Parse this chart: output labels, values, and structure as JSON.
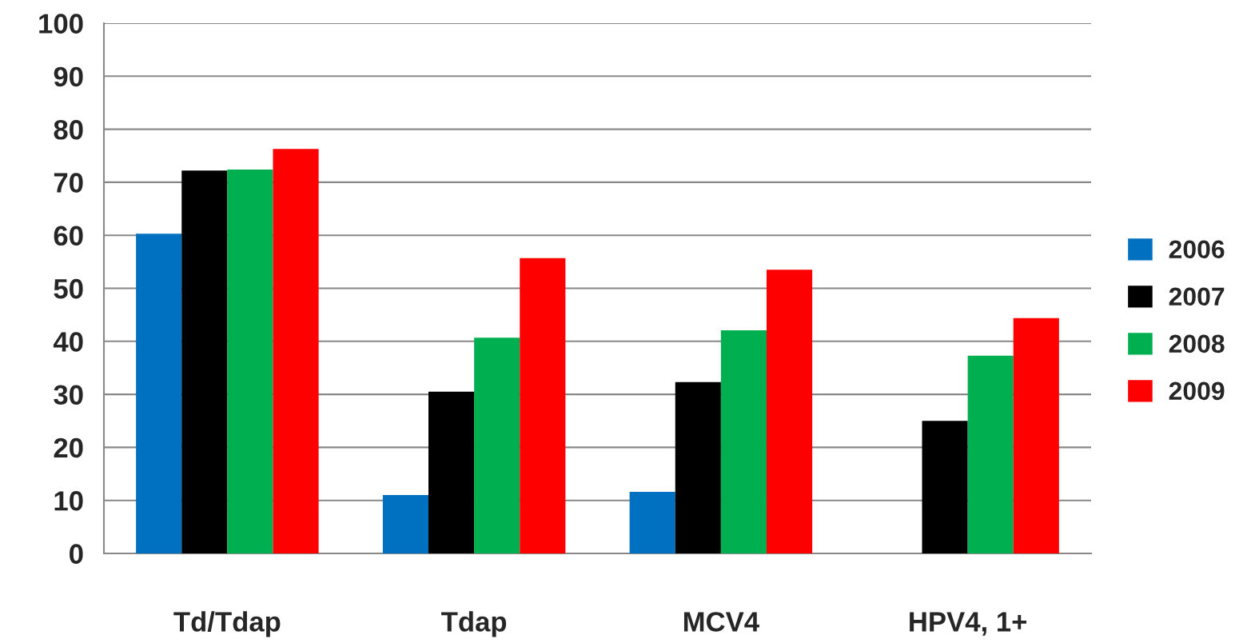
{
  "chart_data": {
    "type": "bar",
    "categories": [
      "Td/Tdap",
      "Tdap",
      "MCV4",
      "HPV4, 1+"
    ],
    "series": [
      {
        "name": "2006",
        "color": "#0070c0",
        "values": [
          60.3,
          11.0,
          11.6,
          null
        ]
      },
      {
        "name": "2007",
        "color": "#000000",
        "values": [
          72.2,
          30.5,
          32.3,
          25.0
        ]
      },
      {
        "name": "2008",
        "color": "#00b050",
        "values": [
          72.4,
          40.7,
          42.1,
          37.3
        ]
      },
      {
        "name": "2009",
        "color": "#ff0000",
        "values": [
          76.3,
          55.7,
          53.5,
          44.4
        ]
      }
    ],
    "ylim": [
      0,
      100
    ],
    "yticks": [
      0,
      10,
      20,
      30,
      40,
      50,
      60,
      70,
      80,
      90,
      100
    ],
    "grid": "y",
    "legend": "right"
  }
}
